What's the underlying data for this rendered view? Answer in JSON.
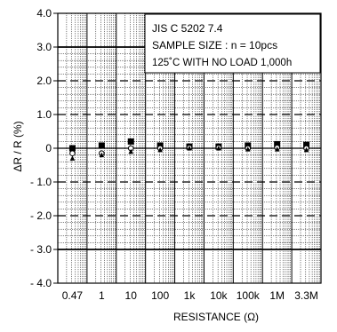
{
  "chart_data": {
    "type": "scatter",
    "title": "",
    "xlabel": "RESISTANCE  (Ω)",
    "ylabel": "ΔR / R (%)",
    "ylim": [
      -4.0,
      4.0
    ],
    "y_ticks": [
      "4.0",
      "3.0",
      "2.0",
      "1.0",
      "0",
      "- 1.0",
      "- 2.0",
      "- 3.0",
      "- 4.0"
    ],
    "y_tick_values": [
      4,
      3,
      2,
      1,
      0,
      -1,
      -2,
      -3,
      -4
    ],
    "categories": [
      "0.47",
      "1",
      "10",
      "100",
      "1k",
      "10k",
      "100k",
      "1M",
      "3.3M"
    ],
    "limits": [
      3.0,
      -3.0
    ],
    "dashed_lines": [
      2.0,
      1.0,
      -1.0,
      -2.0
    ],
    "legend_lines": [
      "JIS C 5202 7.4",
      "SAMPLE SIZE : n = 10pcs",
      "125˚C WITH NO LOAD 1,000h"
    ],
    "legend_placement": "top-right",
    "series": [
      {
        "marker": "filled-square",
        "values": [
          0.0,
          0.08,
          0.2,
          0.08,
          0.05,
          0.05,
          0.08,
          0.12,
          0.1
        ]
      },
      {
        "marker": "open-circle",
        "values": [
          -0.15,
          -0.15,
          0.0,
          0.0,
          0.02,
          0.02,
          0.0,
          0.02,
          0.0
        ]
      },
      {
        "marker": "filled-triangle",
        "values": [
          -0.3,
          -0.2,
          -0.1,
          -0.05,
          0.0,
          0.0,
          -0.03,
          -0.03,
          -0.05
        ]
      }
    ]
  }
}
